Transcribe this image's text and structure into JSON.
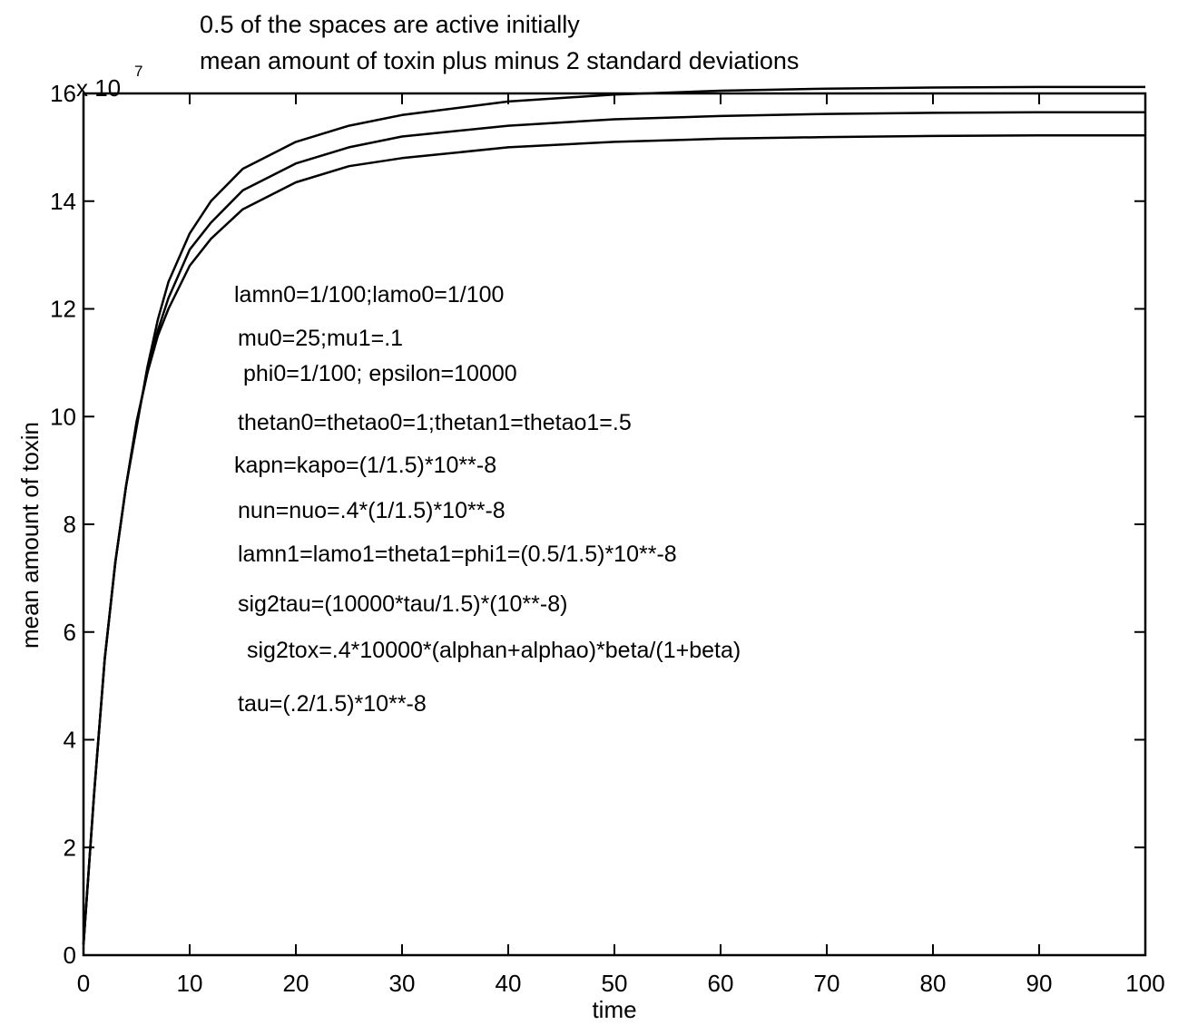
{
  "chart_data": {
    "type": "line",
    "title": "0.5 of the spaces are active initially",
    "subtitle": "mean amount of toxin plus minus 2 standard deviations",
    "xlabel": "time",
    "ylabel": "mean amount of toxin",
    "y_multiplier": {
      "base": "x 10",
      "exponent": "7"
    },
    "xlim": [
      0,
      100
    ],
    "ylim": [
      0,
      16
    ],
    "xticks": [
      0,
      10,
      20,
      30,
      40,
      50,
      60,
      70,
      80,
      90,
      100
    ],
    "yticks": [
      0,
      2,
      4,
      6,
      8,
      10,
      12,
      14,
      16
    ],
    "xtick_labels": [
      "0",
      "10",
      "20",
      "30",
      "40",
      "50",
      "60",
      "70",
      "80",
      "90",
      "100"
    ],
    "ytick_labels": [
      "0",
      "2",
      "4",
      "6",
      "8",
      "10",
      "12",
      "14",
      "16"
    ],
    "grid": false,
    "legend": "none",
    "series": [
      {
        "x": [
          0,
          1,
          2,
          3,
          4,
          5,
          6,
          7,
          8,
          10,
          12,
          15,
          20,
          25,
          30,
          40,
          50,
          60,
          70,
          80,
          90,
          100
        ],
        "values": [
          0.2,
          3.0,
          5.5,
          7.3,
          8.7,
          9.8,
          10.9,
          11.8,
          12.5,
          13.4,
          14.0,
          14.6,
          15.1,
          15.4,
          15.6,
          15.85,
          15.98,
          16.05,
          16.09,
          16.11,
          16.12,
          16.12
        ]
      },
      {
        "x": [
          0,
          1,
          2,
          3,
          4,
          5,
          6,
          7,
          8,
          10,
          12,
          15,
          20,
          25,
          30,
          40,
          50,
          60,
          70,
          80,
          90,
          100
        ],
        "values": [
          0.2,
          3.0,
          5.5,
          7.3,
          8.7,
          9.9,
          10.8,
          11.6,
          12.2,
          13.1,
          13.6,
          14.2,
          14.7,
          15.0,
          15.2,
          15.4,
          15.52,
          15.58,
          15.62,
          15.64,
          15.65,
          15.65
        ]
      },
      {
        "x": [
          0,
          1,
          2,
          3,
          4,
          5,
          6,
          7,
          8,
          10,
          12,
          15,
          20,
          25,
          30,
          40,
          50,
          60,
          70,
          80,
          90,
          100
        ],
        "values": [
          0.2,
          3.0,
          5.5,
          7.3,
          8.7,
          9.9,
          10.8,
          11.5,
          12.0,
          12.8,
          13.3,
          13.85,
          14.35,
          14.65,
          14.8,
          15.0,
          15.1,
          15.16,
          15.19,
          15.21,
          15.22,
          15.22
        ]
      }
    ],
    "annotations": [
      "lamn0=1/100;lamo0=1/100",
      "mu0=25;mu1=.1",
      "phi0=1/100; epsilon=10000",
      "thetan0=thetao0=1;thetan1=thetao1=.5",
      "kapn=kapo=(1/1.5)*10**-8",
      "nun=nuo=.4*(1/1.5)*10**-8",
      "lamn1=lamo1=theta1=phi1=(0.5/1.5)*10**-8",
      "sig2tau=(10000*tau/1.5)*(10**-8)",
      "sig2tox=.4*10000*(alphan+alphao)*beta/(1+beta)",
      "tau=(.2/1.5)*10**-8"
    ]
  }
}
